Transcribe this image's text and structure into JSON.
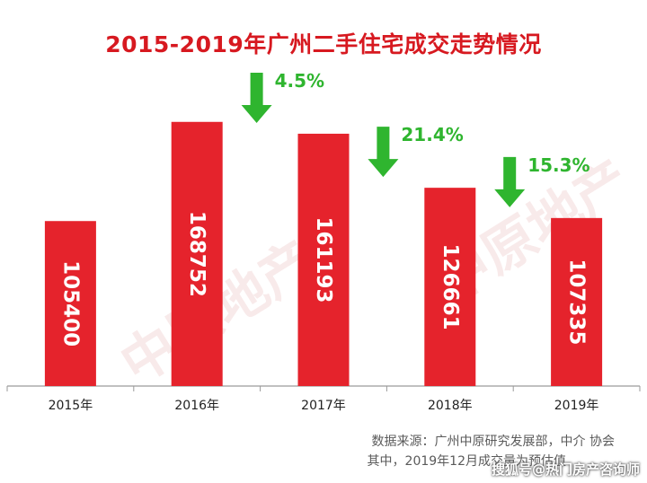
{
  "title": "2015-2019年广州二手住宅成交走势情况",
  "chart_data": {
    "type": "bar",
    "categories": [
      "2015年",
      "2016年",
      "2017年",
      "2018年",
      "2019年"
    ],
    "values": [
      105400,
      168752,
      161193,
      126661,
      107335
    ],
    "ylim": [
      0,
      195000
    ],
    "grid": false,
    "bar_color": "#e5232c",
    "changes": [
      {
        "between": [
          1,
          2
        ],
        "label": "4.5%",
        "direction": "down"
      },
      {
        "between": [
          2,
          3
        ],
        "label": "21.4%",
        "direction": "down"
      },
      {
        "between": [
          3,
          4
        ],
        "label": "15.3%",
        "direction": "down"
      }
    ],
    "arrow_color": "#2fb52f"
  },
  "source": {
    "line1": "数据来源：广州中原研究发展部，中介  协会",
    "line2": "其中，2019年12月成交量为预估值"
  },
  "credit": "搜狐号@热门房产咨询师",
  "watermark": "中原地产"
}
